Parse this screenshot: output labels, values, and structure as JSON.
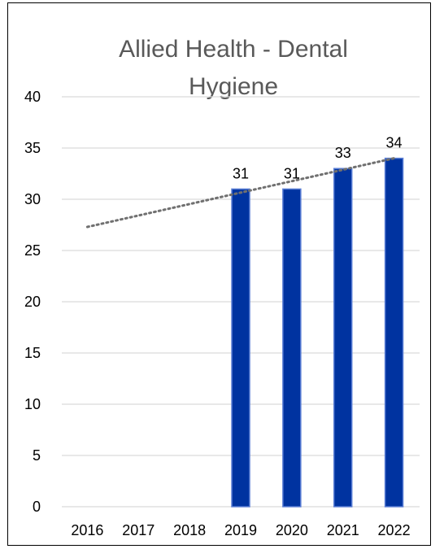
{
  "chart_data": {
    "type": "bar",
    "title": "Allied Health - Dental Hygiene",
    "title_lines": [
      "Allied Health - Dental",
      "Hygiene"
    ],
    "categories": [
      "2016",
      "2017",
      "2018",
      "2019",
      "2020",
      "2021",
      "2022"
    ],
    "values": [
      null,
      null,
      null,
      31,
      31,
      33,
      34
    ],
    "data_labels": [
      "",
      "",
      "",
      "31",
      "31",
      "33",
      "34"
    ],
    "ylim": [
      0,
      40
    ],
    "yticks": [
      0,
      5,
      10,
      15,
      20,
      25,
      30,
      35,
      40
    ],
    "xlabel": "",
    "ylabel": "",
    "grid": true,
    "trendline": {
      "type": "linear",
      "style": "dotted",
      "start": {
        "x": "2016",
        "y": 27.3
      },
      "end": {
        "x": "2022",
        "y": 34.0
      }
    },
    "legend": "none",
    "colors": {
      "bar_fill": "#0033A0",
      "bar_edge": "#5B7FD6",
      "trendline": "#707070",
      "gridline": "#D9D9D9",
      "title": "#595959"
    }
  }
}
